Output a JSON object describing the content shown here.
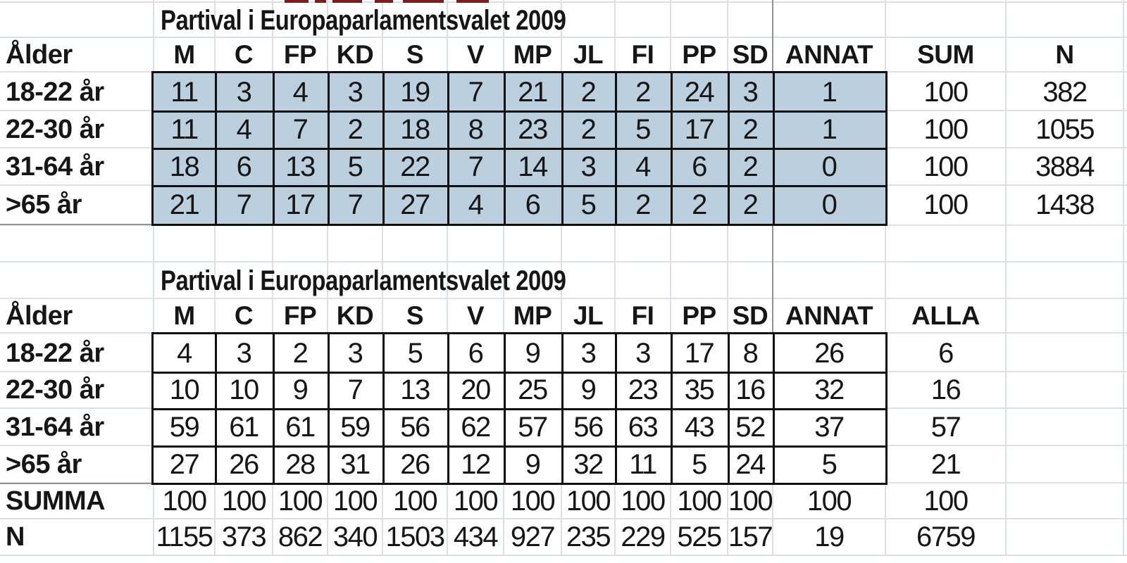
{
  "sheet": {
    "kind": "spreadsheet",
    "fill_color": "#bccfdf",
    "gridline_color": "#dbe0e6",
    "page_break_line_color": "#8f9398",
    "table_border_color": "#0f0f0f",
    "text_color": "#161616"
  },
  "table1": {
    "title": "Partival i Europaparlamentsvalet 2009",
    "corner_header": "Ålder",
    "party_columns": [
      "M",
      "C",
      "FP",
      "KD",
      "S",
      "V",
      "MP",
      "JL",
      "FI",
      "PP",
      "SD",
      "ANNAT"
    ],
    "sum_header": "SUM",
    "n_header": "N",
    "rows": [
      {
        "label": "18-22 år",
        "values": [
          "11",
          "3",
          "4",
          "3",
          "19",
          "7",
          "21",
          "2",
          "2",
          "24",
          "3",
          "1"
        ],
        "sum": "100",
        "n": "382"
      },
      {
        "label": "22-30 år",
        "values": [
          "11",
          "4",
          "7",
          "2",
          "18",
          "8",
          "23",
          "2",
          "5",
          "17",
          "2",
          "1"
        ],
        "sum": "100",
        "n": "1055"
      },
      {
        "label": "31-64 år",
        "values": [
          "18",
          "6",
          "13",
          "5",
          "22",
          "7",
          "14",
          "3",
          "4",
          "6",
          "2",
          "0"
        ],
        "sum": "100",
        "n": "3884"
      },
      {
        "label": ">65 år",
        "values": [
          "21",
          "7",
          "17",
          "7",
          "27",
          "4",
          "6",
          "5",
          "2",
          "2",
          "2",
          "0"
        ],
        "sum": "100",
        "n": "1438"
      }
    ]
  },
  "table2": {
    "title": "Partival i Europaparlamentsvalet 2009",
    "corner_header": "Ålder",
    "party_columns": [
      "M",
      "C",
      "FP",
      "KD",
      "S",
      "V",
      "MP",
      "JL",
      "FI",
      "PP",
      "SD",
      "ANNAT"
    ],
    "alla_header": "ALLA",
    "rows": [
      {
        "label": "18-22 år",
        "values": [
          "4",
          "3",
          "2",
          "3",
          "5",
          "6",
          "9",
          "3",
          "3",
          "17",
          "8",
          "26"
        ],
        "alla": "6"
      },
      {
        "label": "22-30 år",
        "values": [
          "10",
          "10",
          "9",
          "7",
          "13",
          "20",
          "25",
          "9",
          "23",
          "35",
          "16",
          "32"
        ],
        "alla": "16"
      },
      {
        "label": "31-64 år",
        "values": [
          "59",
          "61",
          "61",
          "59",
          "56",
          "62",
          "57",
          "56",
          "63",
          "43",
          "52",
          "37"
        ],
        "alla": "57"
      },
      {
        "label": ">65 år",
        "values": [
          "27",
          "26",
          "28",
          "31",
          "26",
          "12",
          "9",
          "32",
          "11",
          "5",
          "24",
          "5"
        ],
        "alla": "21"
      }
    ],
    "summa_row": {
      "label": "SUMMA",
      "values": [
        "100",
        "100",
        "100",
        "100",
        "100",
        "100",
        "100",
        "100",
        "100",
        "100",
        "100",
        "100"
      ],
      "alla": "100"
    },
    "n_row": {
      "label": "N",
      "values": [
        "1155",
        "373",
        "862",
        "340",
        "1503",
        "434",
        "927",
        "235",
        "229",
        "525",
        "157",
        "19"
      ],
      "alla": "6759"
    }
  }
}
